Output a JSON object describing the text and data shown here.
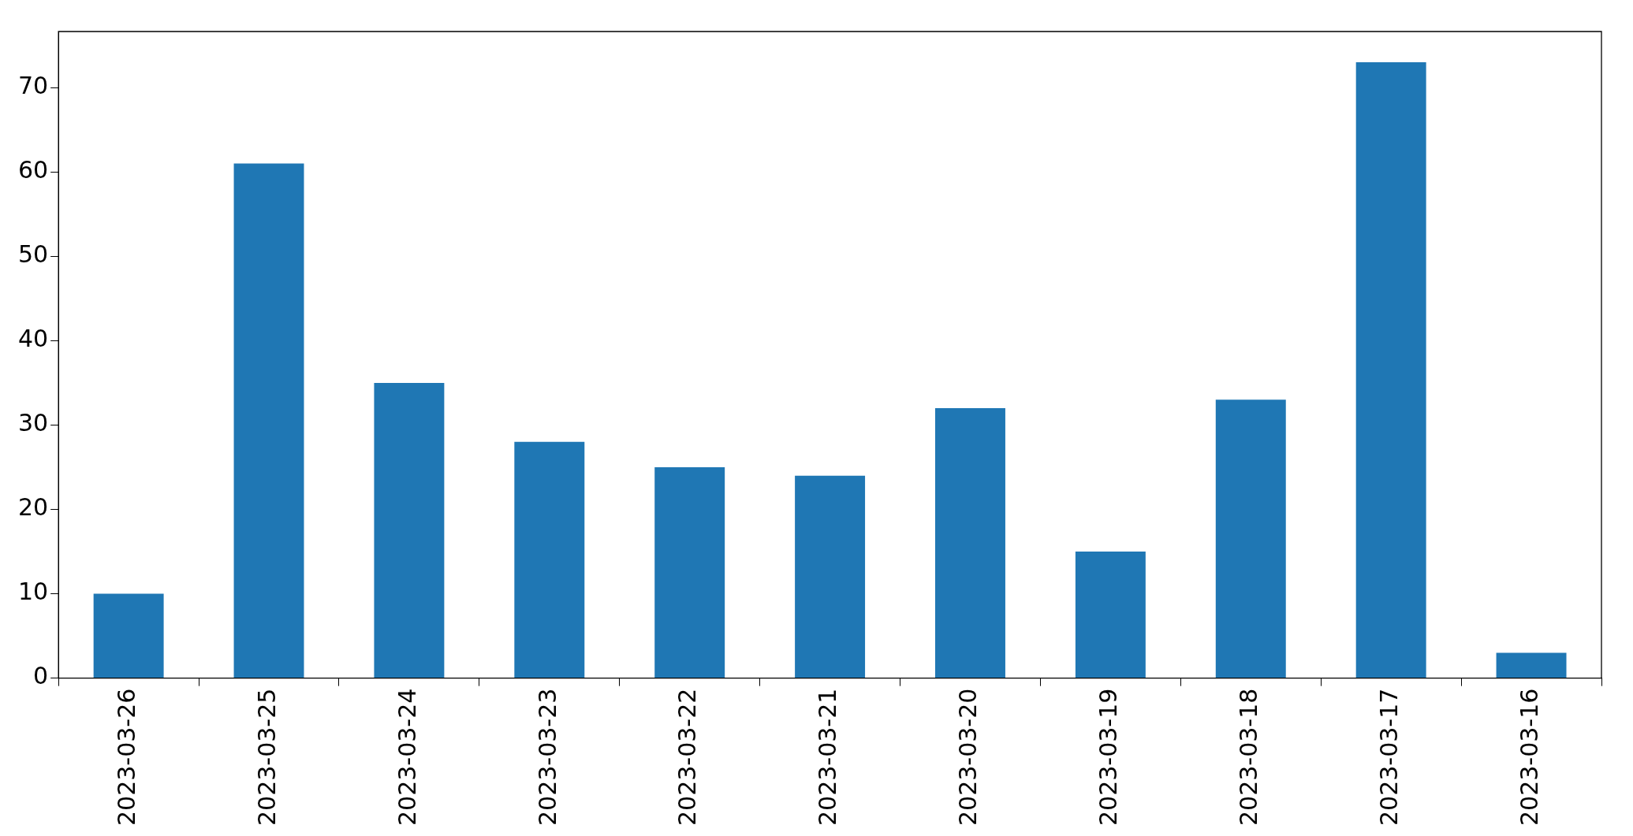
{
  "chart_data": {
    "type": "bar",
    "categories": [
      "2023-03-26",
      "2023-03-25",
      "2023-03-24",
      "2023-03-23",
      "2023-03-22",
      "2023-03-21",
      "2023-03-20",
      "2023-03-19",
      "2023-03-18",
      "2023-03-17",
      "2023-03-16"
    ],
    "values": [
      10,
      61,
      35,
      28,
      25,
      24,
      32,
      15,
      33,
      73,
      3
    ],
    "color": "#1f77b4",
    "ylim": [
      0,
      76.65
    ],
    "yticks": [
      0,
      10,
      20,
      30,
      40,
      50,
      60,
      70
    ],
    "grid": false,
    "legend": false
  }
}
